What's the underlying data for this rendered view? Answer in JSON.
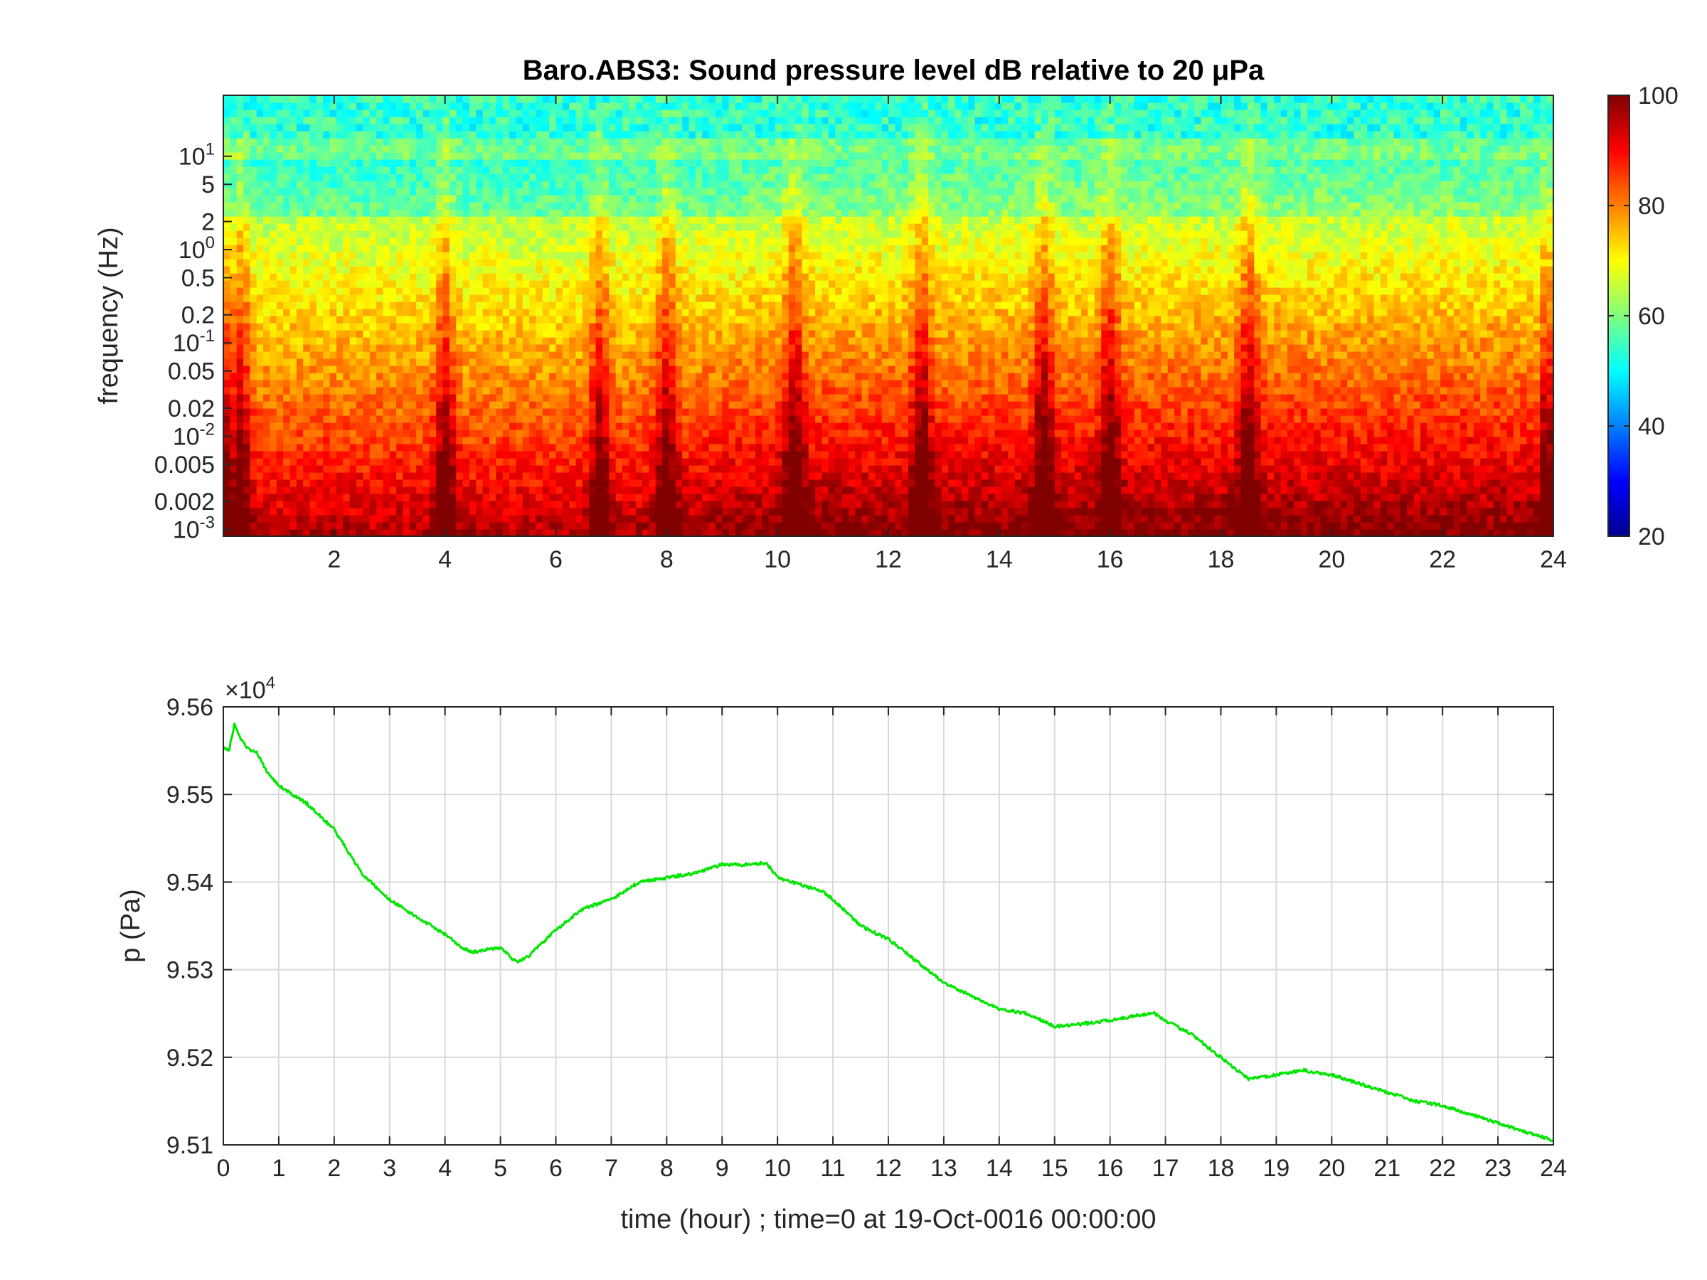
{
  "chart_data": [
    {
      "type": "heatmap",
      "title": "Baro.ABS3: Sound pressure level dB relative to 20 μPa",
      "ylabel": "frequency (Hz)",
      "xlim": [
        0,
        24
      ],
      "ylim": [
        0.00085,
        45
      ],
      "yscale": "log",
      "xticks": [
        2,
        4,
        6,
        8,
        10,
        12,
        14,
        16,
        18,
        20,
        22,
        24
      ],
      "yticks": [
        {
          "value": 0.001,
          "base": "10",
          "exp": "-3"
        },
        {
          "value": 0.002,
          "label": "0.002"
        },
        {
          "value": 0.005,
          "label": "0.005"
        },
        {
          "value": 0.01,
          "base": "10",
          "exp": "-2"
        },
        {
          "value": 0.02,
          "label": "0.02"
        },
        {
          "value": 0.05,
          "label": "0.05"
        },
        {
          "value": 0.1,
          "base": "10",
          "exp": "-1"
        },
        {
          "value": 0.2,
          "label": "0.2"
        },
        {
          "value": 0.5,
          "label": "0.5"
        },
        {
          "value": 1,
          "base": "10",
          "exp": "0"
        },
        {
          "value": 2,
          "label": "2"
        },
        {
          "value": 5,
          "label": "5"
        },
        {
          "value": 10,
          "base": "10",
          "exp": "1"
        }
      ],
      "colormap": "jet",
      "clim": [
        20,
        100
      ],
      "colorbar_ticks": [
        20,
        40,
        60,
        80,
        100
      ],
      "peak_bursts_hour": [
        0.3,
        4.0,
        6.8,
        8.0,
        10.3,
        12.6,
        14.8,
        16.0,
        18.5
      ]
    },
    {
      "type": "line",
      "ylabel": "p (Pa)",
      "xlabel": "time (hour) ; time=0 at 19-Oct-0016 00:00:00",
      "xlim": [
        0,
        24
      ],
      "ylim": [
        95100,
        95600
      ],
      "y_multiplier": {
        "base": "×10",
        "exp": "4"
      },
      "xticks": [
        0,
        1,
        2,
        3,
        4,
        5,
        6,
        7,
        8,
        9,
        10,
        11,
        12,
        13,
        14,
        15,
        16,
        17,
        18,
        19,
        20,
        21,
        22,
        23,
        24
      ],
      "yticks": [
        {
          "value": 95100,
          "label": "9.51"
        },
        {
          "value": 95200,
          "label": "9.52"
        },
        {
          "value": 95300,
          "label": "9.53"
        },
        {
          "value": 95400,
          "label": "9.54"
        },
        {
          "value": 95500,
          "label": "9.55"
        },
        {
          "value": 95600,
          "label": "9.56"
        }
      ],
      "grid": true,
      "line_color": "#00e600",
      "series": [
        {
          "x": [
            0,
            0.1,
            0.2,
            0.3,
            0.4,
            0.5,
            0.6,
            0.8,
            1,
            1.5,
            2,
            2.2,
            2.5,
            3,
            3.5,
            4,
            4.3,
            4.5,
            5,
            5.3,
            5.5,
            6,
            6.5,
            7,
            7.5,
            8,
            8.5,
            9,
            9.5,
            9.8,
            10,
            10.5,
            10.8,
            11,
            11.5,
            12,
            12.5,
            13,
            13.5,
            14,
            14.5,
            15,
            15.5,
            16,
            16.5,
            16.8,
            17,
            17.5,
            18,
            18.5,
            19,
            19.5,
            20,
            20.5,
            21,
            21.5,
            22,
            22.5,
            23,
            23.5,
            24
          ],
          "y": [
            95555,
            95550,
            95580,
            95565,
            95555,
            95550,
            95548,
            95525,
            95510,
            95490,
            95460,
            95440,
            95410,
            95380,
            95360,
            95340,
            95325,
            95320,
            95325,
            95308,
            95315,
            95345,
            95370,
            95380,
            95400,
            95405,
            95410,
            95420,
            95420,
            95422,
            95405,
            95395,
            95390,
            95380,
            95350,
            95335,
            95310,
            95285,
            95270,
            95255,
            95250,
            95235,
            95238,
            95242,
            95248,
            95250,
            95242,
            95225,
            95200,
            95175,
            95180,
            95185,
            95180,
            95170,
            95160,
            95150,
            95145,
            95135,
            95125,
            95115,
            95105
          ]
        }
      ]
    }
  ]
}
